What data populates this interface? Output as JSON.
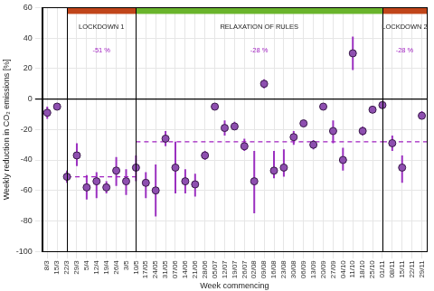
{
  "chart_data": {
    "type": "scatter",
    "x_label": "Week commencing",
    "y_label": "Weekly reduction in CO₂ emissions [%]",
    "categories": [
      "8/3",
      "15/3",
      "22/3",
      "29/3",
      "5/4",
      "12/4",
      "19/4",
      "26/4",
      "3/5",
      "10/5",
      "17/05",
      "24/05",
      "31/05",
      "07/06",
      "14/06",
      "21/06",
      "28/06",
      "05/07",
      "12/07",
      "19/07",
      "26/07",
      "02/08",
      "09/08",
      "16/08",
      "23/08",
      "30/08",
      "06/09",
      "13/09",
      "20/09",
      "27/09",
      "04/10",
      "11/10",
      "18/10",
      "25/10",
      "01/11",
      "08/11",
      "15/11",
      "22/11",
      "29/11"
    ],
    "values": [
      -9,
      -5,
      -51,
      -37,
      -58,
      -54,
      -58,
      -47,
      -54,
      -45,
      -55,
      -60,
      -26,
      -45,
      -54,
      -56,
      -37,
      -5,
      -19,
      -18,
      -31,
      -54,
      10,
      -47,
      -45,
      -25,
      -16,
      -30,
      -5,
      -21,
      -40,
      30,
      -21,
      -7,
      -4,
      -29,
      -45,
      null,
      -11
    ],
    "error_low": [
      -13,
      -6,
      -55,
      -44,
      -66,
      -65,
      -62,
      -57,
      -63,
      -54,
      -65,
      -77,
      -31,
      -62,
      -62,
      -64,
      -40,
      -6,
      -24,
      -20,
      -34,
      -75,
      7,
      -52,
      -51,
      -30,
      -18,
      -33,
      -7,
      -29,
      -47,
      19,
      -24,
      -8,
      -5,
      -34,
      -55,
      null,
      -13
    ],
    "error_high": [
      -5,
      -4,
      -47,
      -29,
      -50,
      -48,
      -54,
      -38,
      -46,
      -37,
      -48,
      -43,
      -21,
      -28,
      -46,
      -49,
      -34,
      -4,
      -14,
      -15,
      -26,
      -34,
      13,
      -34,
      -33,
      -21,
      -14,
      -27,
      -3,
      -14,
      -32,
      41,
      -18,
      -6,
      -3,
      -24,
      -37,
      null,
      -8
    ],
    "color": "#8e4fb0",
    "marker": "circle",
    "ylim": [
      -100,
      60
    ],
    "yticks": [
      -100,
      -80,
      -60,
      -40,
      -20,
      0,
      20,
      40,
      60
    ],
    "grid": true,
    "periods": [
      {
        "label": "LOCKDOWN 1",
        "start": "22/3",
        "end": "10/5",
        "color": "#c0451a",
        "mean": -51,
        "mean_label": "-51 %"
      },
      {
        "label": "RELAXATION OF RULES",
        "start": "10/5",
        "end": "01/11",
        "color": "#6ab42c",
        "mean": -28,
        "mean_label": "-28 %"
      },
      {
        "label": "LOCKDOWN 2",
        "start": "01/11",
        "color": "#c0451a",
        "mean": -28,
        "mean_label": "-28 %"
      }
    ]
  }
}
